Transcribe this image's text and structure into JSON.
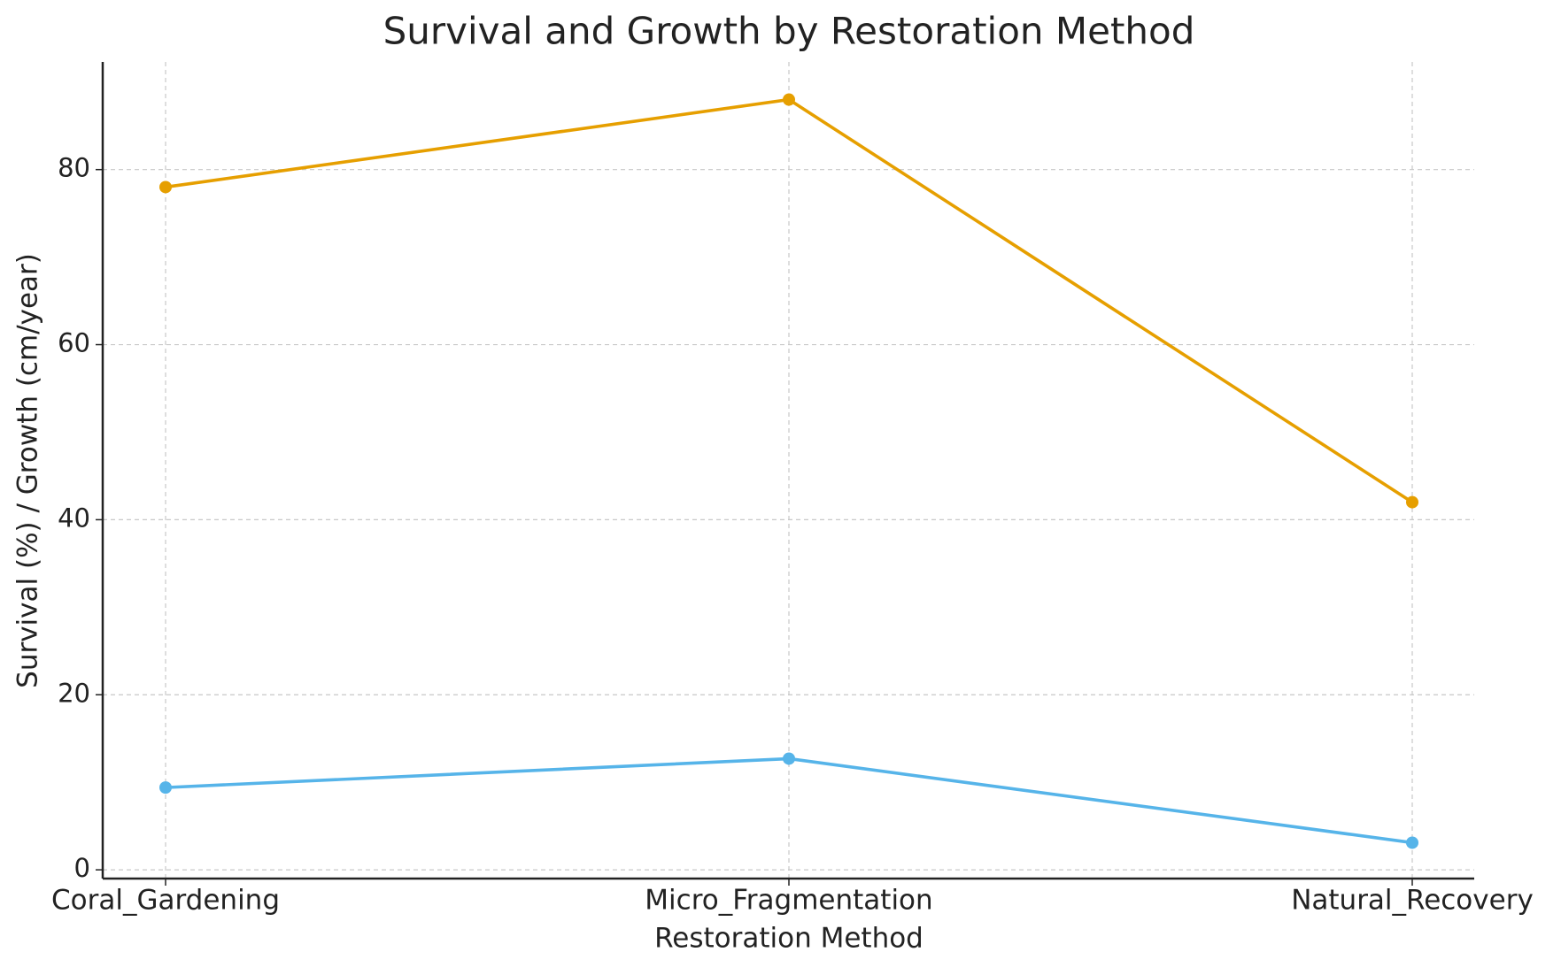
{
  "chart_data": {
    "type": "line",
    "title": "Survival and Growth by Restoration Method",
    "x_label": "Restoration Method",
    "y_label": "Survival (%) / Growth (cm/year)",
    "categories": [
      "Coral_Gardening",
      "Micro_Fragmentation",
      "Natural_Recovery"
    ],
    "series": [
      {
        "color": "#e69f00",
        "values": [
          78,
          88,
          42
        ]
      },
      {
        "color": "#56b4e9",
        "values": [
          9.4,
          12.7,
          3.1
        ]
      }
    ],
    "ylim": [
      -1,
      92.3
    ],
    "yticks": [
      0,
      20,
      40,
      60,
      80
    ],
    "grid": true
  }
}
